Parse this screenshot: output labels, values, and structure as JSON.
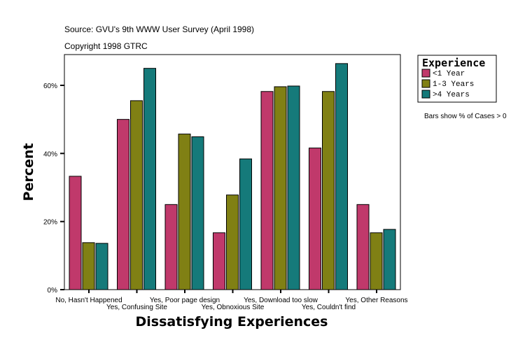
{
  "header": {
    "source": "Source: GVU's 9th WWW User Survey (April 1998)",
    "copyright": "Copyright 1998 GTRC"
  },
  "note": "Bars show % of Cases > 0",
  "chart_data": {
    "type": "bar",
    "xlabel": "Dissatisfying Experiences",
    "ylabel": "Percent",
    "ylim": [
      0,
      69
    ],
    "yticks": [
      "0%",
      "20%",
      "40%",
      "60%"
    ],
    "ytick_values": [
      0,
      20,
      40,
      60
    ],
    "grid": false,
    "legend": {
      "title": "Experience",
      "placement": "right"
    },
    "categories": [
      "No, Hasn't Happened",
      "Yes, Confusing Site",
      "Yes, Poor page design",
      "Yes, Obnoxious Site",
      "Yes, Download too slow",
      "Yes, Couldn't find",
      "Yes, Other Reasons"
    ],
    "series": [
      {
        "name": "<1 Year",
        "color": "#c0396b",
        "values": [
          33.3,
          50.0,
          25.0,
          16.7,
          58.2,
          41.6,
          25.0
        ]
      },
      {
        "name": "1-3 Years",
        "color": "#808014",
        "values": [
          13.8,
          55.5,
          45.7,
          27.8,
          59.6,
          58.2,
          16.7
        ]
      },
      {
        "name": ">4 Years",
        "color": "#157a7a",
        "values": [
          13.6,
          65.0,
          44.9,
          38.4,
          59.8,
          66.4,
          17.7
        ]
      }
    ]
  }
}
